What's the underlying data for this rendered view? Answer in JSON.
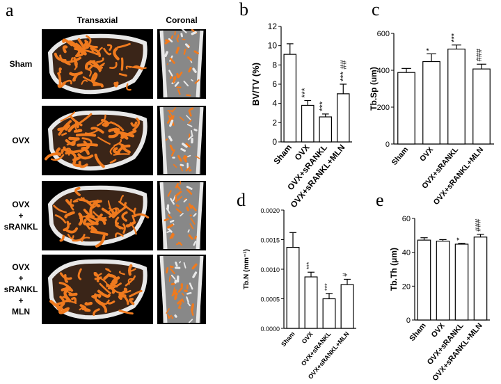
{
  "panel_a": {
    "letter": "a",
    "columns": [
      "Transaxial",
      "Coronal"
    ],
    "rows": [
      {
        "label_lines": [
          "Sham"
        ]
      },
      {
        "label_lines": [
          "OVX"
        ]
      },
      {
        "label_lines": [
          "OVX",
          "+",
          "sRANKL"
        ]
      },
      {
        "label_lines": [
          "OVX",
          "+",
          "sRANKL",
          "+",
          "MLN"
        ]
      }
    ],
    "colors": {
      "bone": "#e8e8e8",
      "trabecular": "#f07a1e",
      "background": "#000000",
      "marrow": "#3a2518"
    }
  },
  "chart_data": [
    {
      "letter": "b",
      "type": "bar",
      "categories": [
        "Sham",
        "OVX",
        "OVX+sRANKL",
        "OVX+sRANKL+MLN"
      ],
      "values": [
        9.1,
        3.8,
        2.6,
        5.0
      ],
      "errors": [
        1.1,
        0.5,
        0.3,
        1.0
      ],
      "annotations": [
        "",
        "***",
        "***",
        "***\n##"
      ],
      "ylabel": "BV/TV (%)",
      "ylim": [
        0,
        12
      ],
      "yticks": [
        "0",
        "2",
        "4",
        "6",
        "8",
        "10",
        "12"
      ]
    },
    {
      "letter": "c",
      "type": "bar",
      "categories": [
        "Sham",
        "OVX",
        "OVX+sRANKL",
        "OVX+sRANKL+MLN"
      ],
      "values": [
        388,
        447,
        515,
        407
      ],
      "errors": [
        22,
        42,
        22,
        26
      ],
      "annotations": [
        "",
        "*",
        "***",
        "###"
      ],
      "ylabel": "Tb.Sp (um)",
      "ylim": [
        0,
        600
      ],
      "yticks": [
        "0",
        "200",
        "400",
        "600"
      ]
    },
    {
      "letter": "d",
      "type": "bar",
      "categories": [
        "Sham",
        "OVX",
        "OVX+sRANKL",
        "OVX+sRANKL+MLN"
      ],
      "values": [
        0.00137,
        0.00087,
        0.0005,
        0.00074
      ],
      "errors": [
        0.00025,
        8e-05,
        9e-05,
        9e-05
      ],
      "annotations": [
        "",
        "***",
        "***",
        "#"
      ],
      "ylabel": "Tb.N (mm⁻¹)",
      "ylim": [
        0,
        0.002
      ],
      "yticks": [
        "0.0000",
        "0.0005",
        "0.0010",
        "0.0015",
        "0.0020"
      ]
    },
    {
      "letter": "e",
      "type": "bar",
      "categories": [
        "Sham",
        "OVX",
        "OVX+sRANKL",
        "OVX+sRANKL+MLN"
      ],
      "values": [
        47.2,
        46.6,
        44.8,
        49.0
      ],
      "errors": [
        1.4,
        0.9,
        0.5,
        1.6
      ],
      "annotations": [
        "",
        "",
        "*",
        "###"
      ],
      "ylabel": "Tb.Th (μm)",
      "ylim": [
        0,
        60
      ],
      "yticks": [
        "0",
        "20",
        "40",
        "60"
      ]
    }
  ]
}
